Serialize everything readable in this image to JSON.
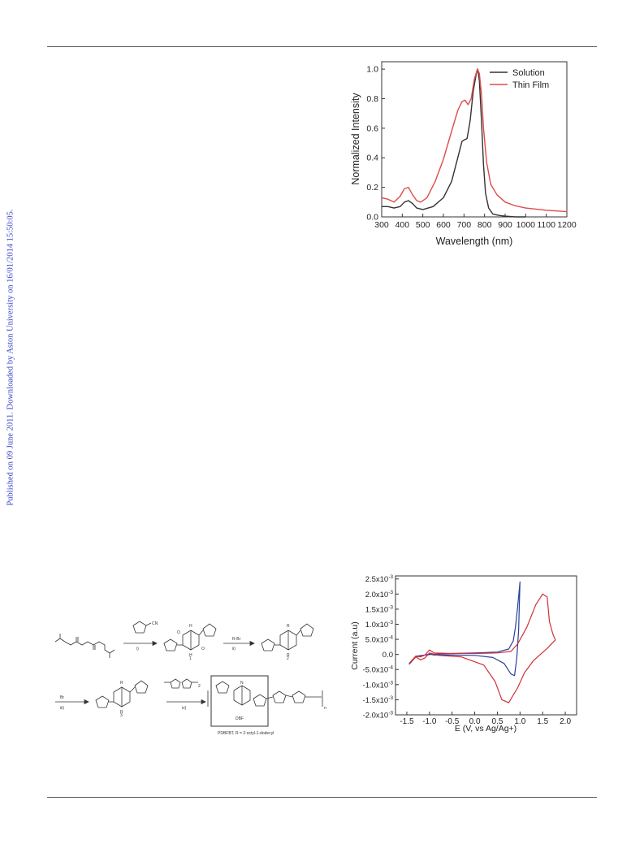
{
  "side_note": "Published on 09 June 2011. Downloaded by Aston University on 16/01/2014 15:50:05.",
  "scheme": {
    "reagents": [
      "i)",
      "R-Br",
      "ii)",
      "Br",
      "iii)",
      "iv)"
    ],
    "cn_label": "CN",
    "compounds": [
      "1",
      "2",
      "3"
    ],
    "h_label": "H",
    "r_label": "R",
    "o_label": "O",
    "n_label": "N",
    "dbf_label": "DBF",
    "subscript_n": "n",
    "subscript_2": "2",
    "caption": "PDBFBT, R = 2-octyl-1-dodecyl"
  },
  "chart_data": [
    {
      "type": "line",
      "xlabel": "Wavelength (nm)",
      "ylabel": "Normalized Intensity",
      "xlim": [
        300,
        1200
      ],
      "ylim": [
        0,
        1.05
      ],
      "xticks": [
        300,
        400,
        500,
        600,
        700,
        800,
        900,
        1000,
        1100,
        1200
      ],
      "yticks": [
        0.0,
        0.2,
        0.4,
        0.6,
        0.8,
        1.0
      ],
      "ytick_labels": [
        "0.0",
        "0.2",
        "0.4",
        "0.6",
        "0.8",
        "1.0"
      ],
      "legend_position": "top-right",
      "grid": false,
      "series": [
        {
          "name": "Solution",
          "color": "#333333",
          "x": [
            300,
            330,
            360,
            390,
            410,
            430,
            450,
            470,
            500,
            550,
            600,
            640,
            670,
            690,
            700,
            715,
            730,
            745,
            760,
            767,
            775,
            785,
            795,
            805,
            820,
            840,
            870,
            900,
            950,
            1000
          ],
          "y": [
            0.07,
            0.07,
            0.06,
            0.07,
            0.1,
            0.11,
            0.09,
            0.06,
            0.05,
            0.07,
            0.13,
            0.24,
            0.4,
            0.51,
            0.52,
            0.53,
            0.65,
            0.85,
            0.97,
            1.0,
            0.92,
            0.65,
            0.35,
            0.16,
            0.06,
            0.02,
            0.01,
            0.005,
            0.0,
            0.0
          ]
        },
        {
          "name": "Thin Film",
          "color": "#e04b4b",
          "x": [
            300,
            330,
            360,
            390,
            410,
            430,
            450,
            470,
            490,
            520,
            560,
            600,
            640,
            670,
            690,
            705,
            720,
            735,
            750,
            765,
            775,
            785,
            795,
            810,
            830,
            860,
            900,
            950,
            1000,
            1100,
            1200
          ],
          "y": [
            0.13,
            0.12,
            0.1,
            0.14,
            0.19,
            0.2,
            0.15,
            0.11,
            0.1,
            0.13,
            0.24,
            0.39,
            0.58,
            0.72,
            0.78,
            0.79,
            0.76,
            0.8,
            0.93,
            1.0,
            0.97,
            0.83,
            0.6,
            0.37,
            0.22,
            0.15,
            0.1,
            0.075,
            0.06,
            0.045,
            0.035
          ]
        }
      ]
    },
    {
      "type": "line",
      "xlabel": "E (V, vs Ag/Ag+)",
      "ylabel": "Current (a.u)",
      "xlim": [
        -1.75,
        2.25
      ],
      "ylim": [
        -0.002,
        0.0026
      ],
      "xticks": [
        -1.5,
        -1.0,
        -0.5,
        0.0,
        0.5,
        1.0,
        1.5,
        2.0
      ],
      "xtick_labels": [
        "-1.5",
        "-1.0",
        "-0.5",
        "0.0",
        "0.5",
        "1.0",
        "1.5",
        "2.0"
      ],
      "yticks": [
        -0.002,
        -0.0015,
        -0.001,
        -0.0005,
        0,
        0.0005,
        0.001,
        0.0015,
        0.002,
        0.0025
      ],
      "ytick_labels": [
        {
          "m": "-2.0x10",
          "e": "-3"
        },
        {
          "m": "-1.5x10",
          "e": "-3"
        },
        {
          "m": "-1.0x10",
          "e": "-3"
        },
        {
          "m": "-5.0x10",
          "e": "-4"
        },
        {
          "m": "0.0",
          "e": ""
        },
        {
          "m": "5.0x10",
          "e": "-4"
        },
        {
          "m": "1.0x10",
          "e": "-3"
        },
        {
          "m": "1.5x10",
          "e": "-3"
        },
        {
          "m": "2.0x10",
          "e": "-3"
        },
        {
          "m": "2.5x10",
          "e": "-3"
        }
      ],
      "grid": false,
      "series": [
        {
          "color": "#2a3f9c",
          "x": [
            -1.45,
            -1.3,
            -1.1,
            -0.9,
            -0.5,
            0.0,
            0.5,
            0.75,
            0.85,
            0.9,
            0.95,
            1.0,
            0.97,
            0.93,
            0.88,
            0.8,
            0.65,
            0.4,
            0.0,
            -0.5,
            -0.9,
            -1.0,
            -1.1,
            -1.3,
            -1.45
          ],
          "y": [
            -0.00033,
            -8e-05,
            -2e-05,
            1e-05,
            3e-05,
            5e-05,
            8e-05,
            0.00018,
            0.00045,
            0.0009,
            0.0016,
            0.0024,
            0.0008,
            -0.0001,
            -0.0007,
            -0.00065,
            -0.0003,
            -0.0001,
            -3e-05,
            -2e-05,
            -2e-05,
            2e-05,
            -2e-05,
            -6e-05,
            -0.00033
          ]
        },
        {
          "color": "#d0303a",
          "x": [
            -1.45,
            -1.3,
            -1.2,
            -1.1,
            -1.0,
            -0.9,
            -0.5,
            0.0,
            0.5,
            0.8,
            0.95,
            1.15,
            1.35,
            1.5,
            1.6,
            1.65,
            1.72,
            1.78,
            1.6,
            1.3,
            1.1,
            0.95,
            0.75,
            0.6,
            0.45,
            0.2,
            -0.3,
            -0.8,
            -1.0,
            -1.1,
            -1.2,
            -1.3,
            -1.45
          ],
          "y": [
            -0.0003,
            -5e-05,
            -8e-05,
            -2e-05,
            0.00015,
            5e-05,
            3e-05,
            3e-05,
            5e-05,
            0.0001,
            0.00035,
            0.0009,
            0.00165,
            0.002,
            0.0019,
            0.0011,
            0.0007,
            0.00048,
            0.0002,
            -0.0002,
            -0.0006,
            -0.0011,
            -0.0016,
            -0.0015,
            -0.0009,
            -0.00035,
            -8e-05,
            -3e-05,
            5e-05,
            -0.00012,
            -0.00018,
            -8e-05,
            -0.0003
          ]
        }
      ]
    }
  ]
}
